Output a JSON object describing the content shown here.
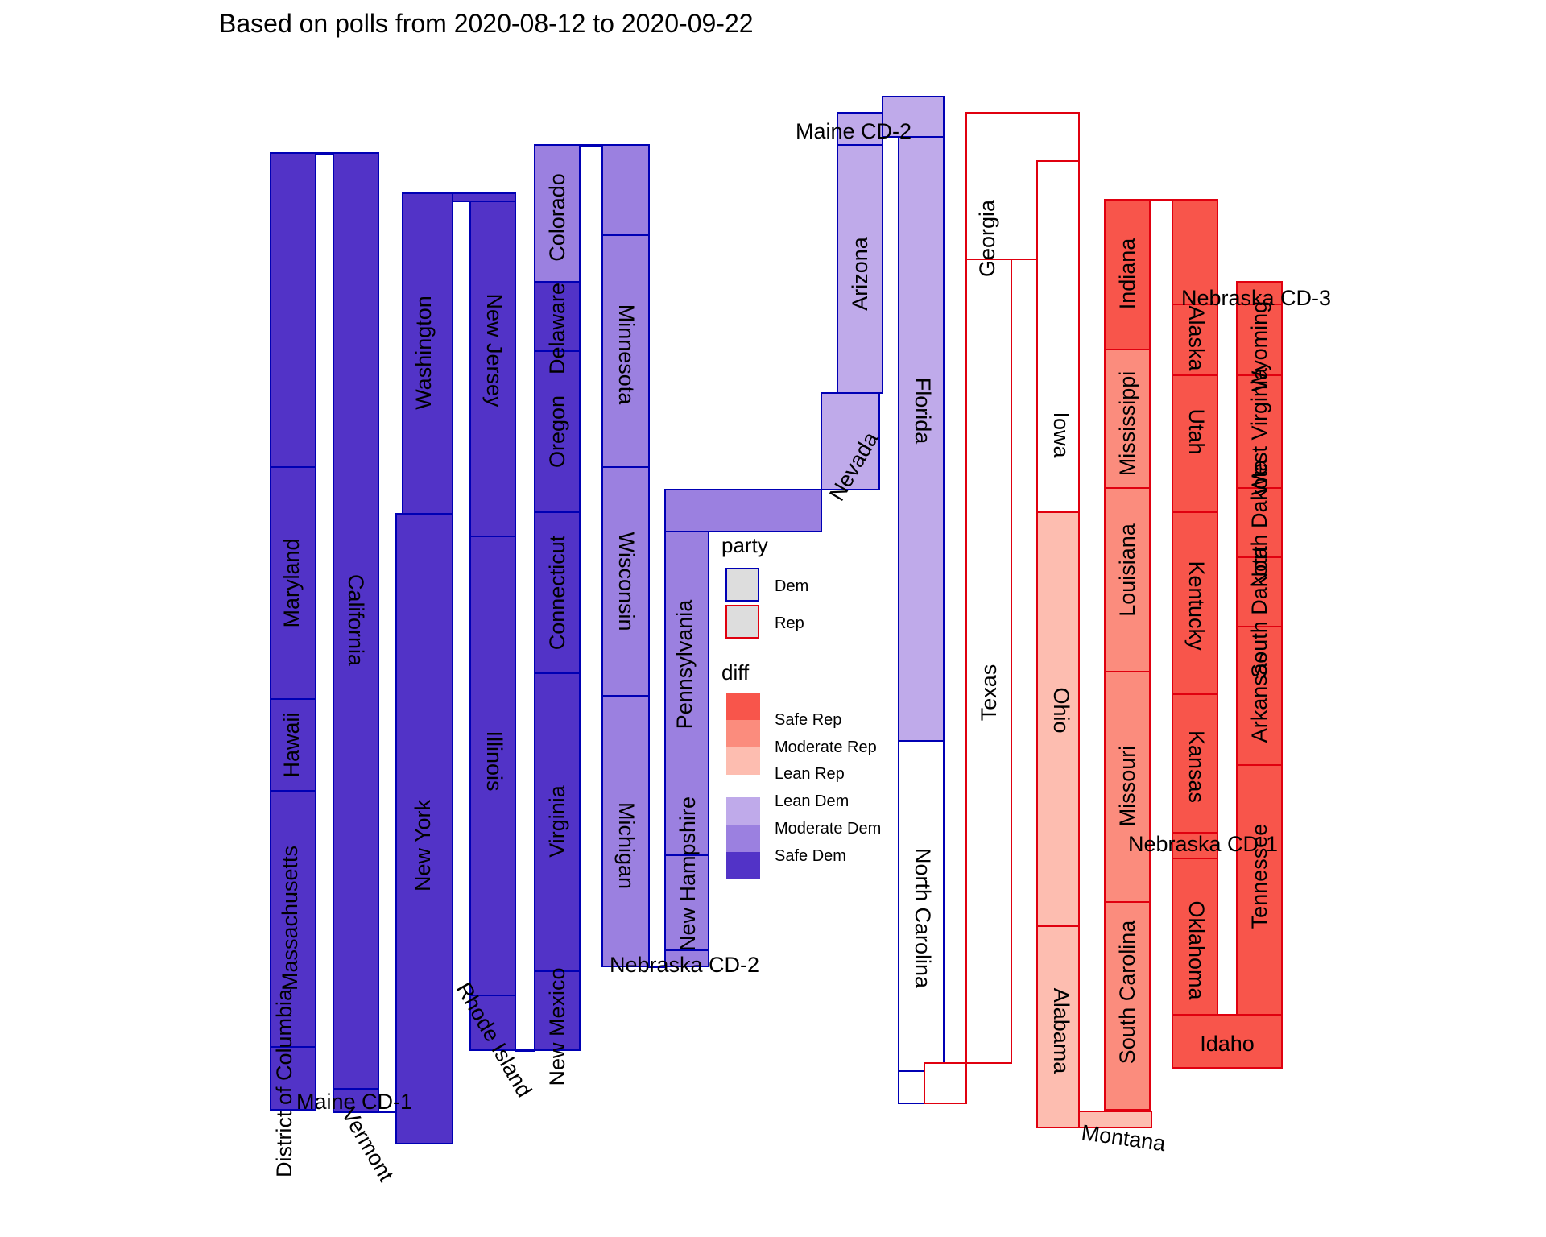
{
  "chart_data": {
    "type": "snake-column",
    "title": "Based on polls from 2020-08-12 to 2020-09-22",
    "colors": {
      "Safe Rep": "#f8554b",
      "Moderate Rep": "#fb8c7d",
      "Lean Rep": "#fdbdb0",
      "Tossup": "#ffffff",
      "Lean Dem": "#bfaaea",
      "Moderate Dem": "#9b80e0",
      "Safe Dem": "#5233c7",
      "Dem": "#0000b4",
      "Rep": "#e0000f"
    },
    "legend": {
      "party_title": "party",
      "party_items": [
        "Dem",
        "Rep"
      ],
      "diff_title": "diff",
      "diff_items": [
        "Safe Rep",
        "Moderate Rep",
        "Lean Rep",
        "Lean Dem",
        "Moderate Dem",
        "Safe Dem"
      ]
    },
    "states": [
      {
        "name": "District of Columbia",
        "rating": "Safe Dem",
        "party": "Dem"
      },
      {
        "name": "Massachusetts",
        "rating": "Safe Dem",
        "party": "Dem"
      },
      {
        "name": "Hawaii",
        "rating": "Safe Dem",
        "party": "Dem"
      },
      {
        "name": "Maryland",
        "rating": "Safe Dem",
        "party": "Dem"
      },
      {
        "name": "California",
        "rating": "Safe Dem",
        "party": "Dem"
      },
      {
        "name": "Maine CD-1",
        "rating": "Safe Dem",
        "party": "Dem"
      },
      {
        "name": "Vermont",
        "rating": "Safe Dem",
        "party": "Dem"
      },
      {
        "name": "New York",
        "rating": "Safe Dem",
        "party": "Dem"
      },
      {
        "name": "Washington",
        "rating": "Safe Dem",
        "party": "Dem"
      },
      {
        "name": "New Jersey",
        "rating": "Safe Dem",
        "party": "Dem"
      },
      {
        "name": "Illinois",
        "rating": "Safe Dem",
        "party": "Dem"
      },
      {
        "name": "Rhode Island",
        "rating": "Safe Dem",
        "party": "Dem"
      },
      {
        "name": "New Mexico",
        "rating": "Safe Dem",
        "party": "Dem"
      },
      {
        "name": "Virginia",
        "rating": "Safe Dem",
        "party": "Dem"
      },
      {
        "name": "Connecticut",
        "rating": "Safe Dem",
        "party": "Dem"
      },
      {
        "name": "Oregon",
        "rating": "Safe Dem",
        "party": "Dem"
      },
      {
        "name": "Delaware",
        "rating": "Safe Dem",
        "party": "Dem"
      },
      {
        "name": "Colorado",
        "rating": "Moderate Dem",
        "party": "Dem"
      },
      {
        "name": "Minnesota",
        "rating": "Moderate Dem",
        "party": "Dem"
      },
      {
        "name": "Wisconsin",
        "rating": "Moderate Dem",
        "party": "Dem"
      },
      {
        "name": "Michigan",
        "rating": "Moderate Dem",
        "party": "Dem"
      },
      {
        "name": "Nebraska CD-2",
        "rating": "Moderate Dem",
        "party": "Dem"
      },
      {
        "name": "New Hampshire",
        "rating": "Moderate Dem",
        "party": "Dem"
      },
      {
        "name": "Pennsylvania",
        "rating": "Moderate Dem",
        "party": "Dem"
      },
      {
        "name": "Nevada",
        "rating": "Lean Dem",
        "party": "Dem"
      },
      {
        "name": "Arizona",
        "rating": "Lean Dem",
        "party": "Dem"
      },
      {
        "name": "Maine CD-2",
        "rating": "Lean Dem",
        "party": "Dem"
      },
      {
        "name": "Florida",
        "rating": "Lean Dem",
        "party": "Dem"
      },
      {
        "name": "North Carolina",
        "rating": "Tossup",
        "party": "Dem"
      },
      {
        "name": "Georgia",
        "rating": "Tossup",
        "party": "Rep"
      },
      {
        "name": "Texas",
        "rating": "Tossup",
        "party": "Rep"
      },
      {
        "name": "Iowa",
        "rating": "Tossup",
        "party": "Rep"
      },
      {
        "name": "Ohio",
        "rating": "Lean Rep",
        "party": "Rep"
      },
      {
        "name": "Alabama",
        "rating": "Lean Rep",
        "party": "Rep"
      },
      {
        "name": "Montana",
        "rating": "Lean Rep",
        "party": "Rep"
      },
      {
        "name": "South Carolina",
        "rating": "Moderate Rep",
        "party": "Rep"
      },
      {
        "name": "Missouri",
        "rating": "Moderate Rep",
        "party": "Rep"
      },
      {
        "name": "Louisiana",
        "rating": "Moderate Rep",
        "party": "Rep"
      },
      {
        "name": "Mississippi",
        "rating": "Moderate Rep",
        "party": "Rep"
      },
      {
        "name": "Indiana",
        "rating": "Safe Rep",
        "party": "Rep"
      },
      {
        "name": "Alaska",
        "rating": "Safe Rep",
        "party": "Rep"
      },
      {
        "name": "Utah",
        "rating": "Safe Rep",
        "party": "Rep"
      },
      {
        "name": "Kentucky",
        "rating": "Safe Rep",
        "party": "Rep"
      },
      {
        "name": "Kansas",
        "rating": "Safe Rep",
        "party": "Rep"
      },
      {
        "name": "Nebraska CD-1",
        "rating": "Safe Rep",
        "party": "Rep"
      },
      {
        "name": "Oklahoma",
        "rating": "Safe Rep",
        "party": "Rep"
      },
      {
        "name": "Idaho",
        "rating": "Safe Rep",
        "party": "Rep"
      },
      {
        "name": "Tennessee",
        "rating": "Safe Rep",
        "party": "Rep"
      },
      {
        "name": "Arkansas",
        "rating": "Safe Rep",
        "party": "Rep"
      },
      {
        "name": "South Dakota",
        "rating": "Safe Rep",
        "party": "Rep"
      },
      {
        "name": "North Dakota",
        "rating": "Safe Rep",
        "party": "Rep"
      },
      {
        "name": "West Virginia",
        "rating": "Safe Rep",
        "party": "Rep"
      },
      {
        "name": "Wyoming",
        "rating": "Safe Rep",
        "party": "Rep"
      },
      {
        "name": "Nebraska CD-3",
        "rating": "Safe Rep",
        "party": "Rep"
      }
    ]
  }
}
